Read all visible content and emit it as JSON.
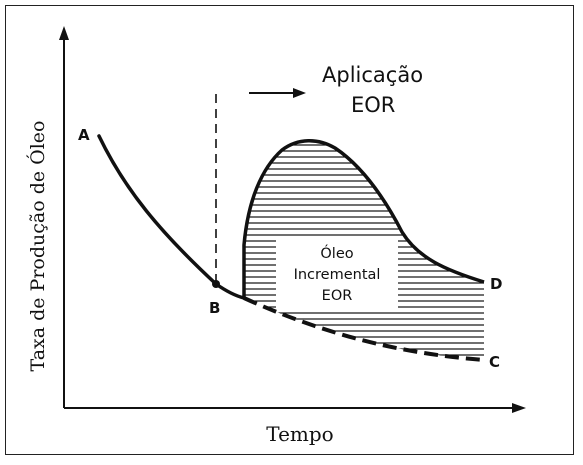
{
  "figure": {
    "y_axis_label": "Taxa de Produção de Óleo",
    "x_axis_label": "Tempo",
    "application_label_line1": "Aplicação",
    "application_label_line2": "EOR",
    "incremental_label_line1": "Óleo",
    "incremental_label_line2": "Incremental",
    "incremental_label_line3": "EOR",
    "points": {
      "A": "A",
      "B": "B",
      "C": "C",
      "D": "D"
    },
    "colors": {
      "ink": "#111111",
      "background": "#ffffff"
    }
  }
}
